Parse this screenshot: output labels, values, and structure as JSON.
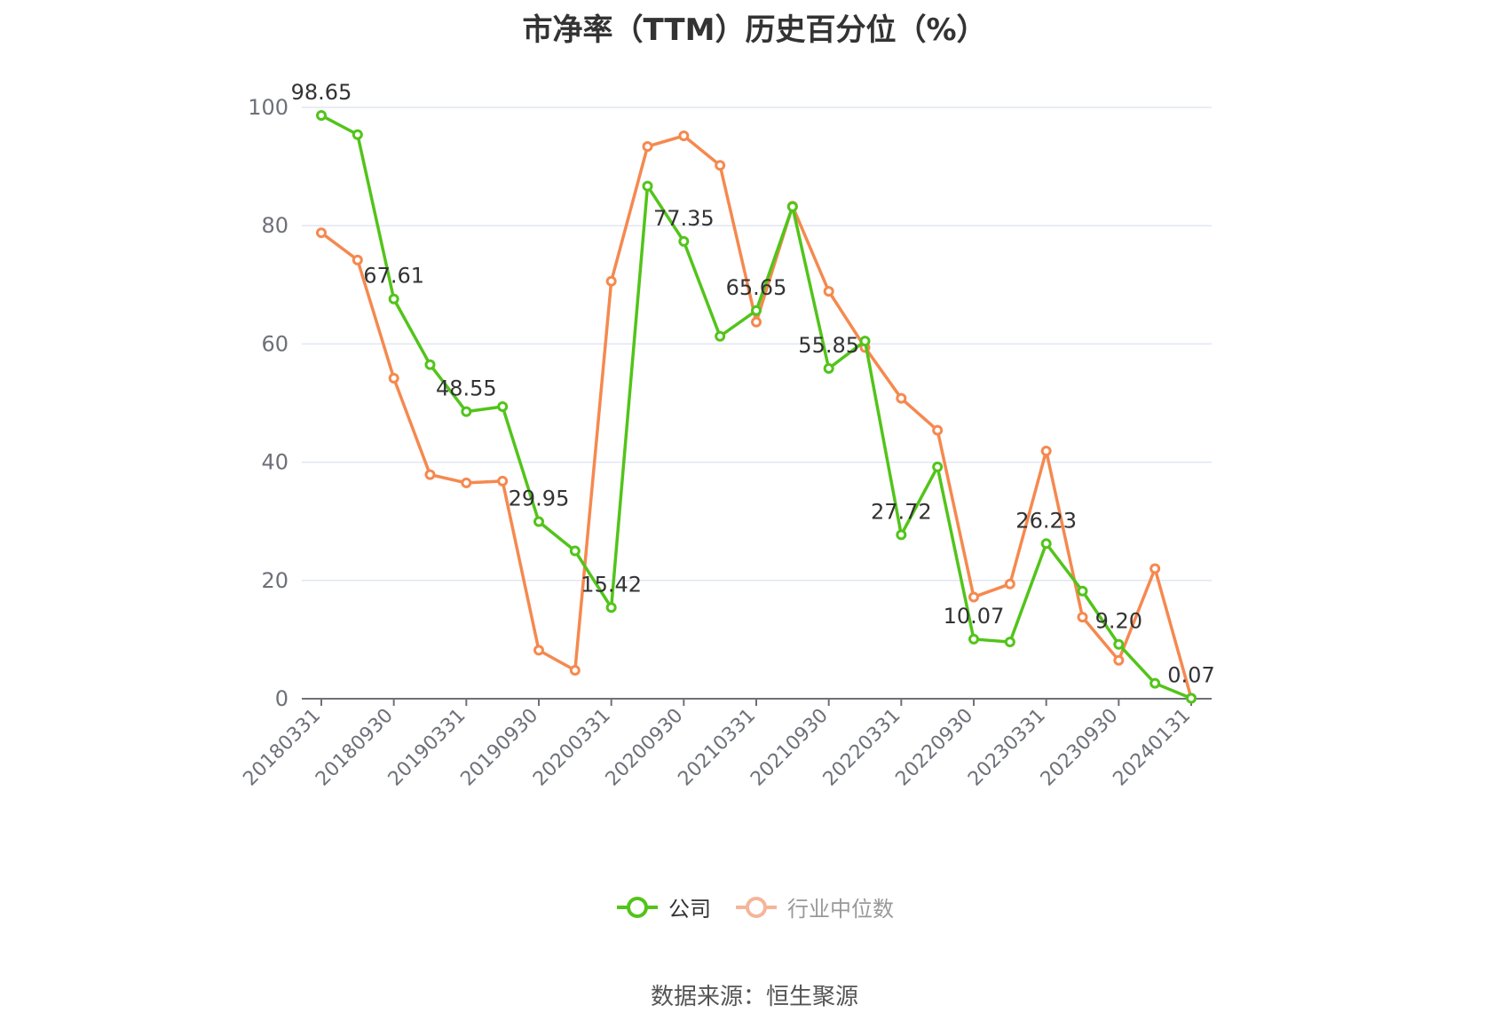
{
  "chart_data": {
    "type": "line",
    "title": "市净率（TTM）历史百分位（%）",
    "xlabel": "",
    "ylabel": "",
    "ylim": [
      0,
      100
    ],
    "yticks": [
      0,
      20,
      40,
      60,
      80,
      100
    ],
    "grid": true,
    "legend_position": "bottom",
    "x": [
      "20180331",
      "20180630",
      "20180930",
      "20181231",
      "20190331",
      "20190630",
      "20190930",
      "20191231",
      "20200331",
      "20200630",
      "20200930",
      "20201231",
      "20210331",
      "20210630",
      "20210930",
      "20211231",
      "20220331",
      "20220630",
      "20220930",
      "20221231",
      "20230331",
      "20230630",
      "20230930",
      "20231231",
      "20240131"
    ],
    "xtick_labels": [
      "20180331",
      "20180930",
      "20190331",
      "20190930",
      "20200331",
      "20200930",
      "20210331",
      "20210930",
      "20220331",
      "20220930",
      "20230331",
      "20230930",
      "20240131"
    ],
    "xtick_indices": [
      0,
      2,
      4,
      6,
      8,
      10,
      12,
      14,
      16,
      18,
      20,
      22,
      24
    ],
    "series": [
      {
        "name": "公司",
        "color": "#52c41a",
        "values": [
          98.65,
          95.4,
          67.61,
          56.5,
          48.55,
          49.4,
          29.95,
          25.0,
          15.42,
          86.7,
          77.35,
          61.3,
          65.65,
          83.2,
          55.85,
          60.5,
          27.72,
          39.2,
          10.07,
          9.6,
          26.23,
          18.2,
          9.2,
          2.6,
          0.07
        ],
        "labels": [
          "98.65",
          "",
          "67.61",
          "",
          "48.55",
          "",
          "29.95",
          "",
          "15.42",
          "",
          "77.35",
          "",
          "65.65",
          "",
          "55.85",
          "",
          "27.72",
          "",
          "10.07",
          "",
          "26.23",
          "",
          "9.20",
          "",
          "0.07"
        ]
      },
      {
        "name": "行业中位数",
        "color": "#f5894f",
        "values": [
          78.8,
          74.2,
          54.2,
          37.9,
          36.5,
          36.8,
          8.2,
          4.8,
          70.6,
          93.4,
          95.2,
          90.2,
          63.7,
          83.3,
          68.9,
          59.4,
          50.8,
          45.4,
          17.2,
          19.4,
          41.9,
          13.8,
          6.5,
          22.0,
          0.1
        ],
        "labels": []
      }
    ]
  },
  "legend": {
    "items": [
      {
        "label": "公司",
        "color": "#52c41a",
        "active": true
      },
      {
        "label": "行业中位数",
        "color": "#f5b59a",
        "active": false
      }
    ]
  },
  "source": "数据来源：恒生聚源"
}
